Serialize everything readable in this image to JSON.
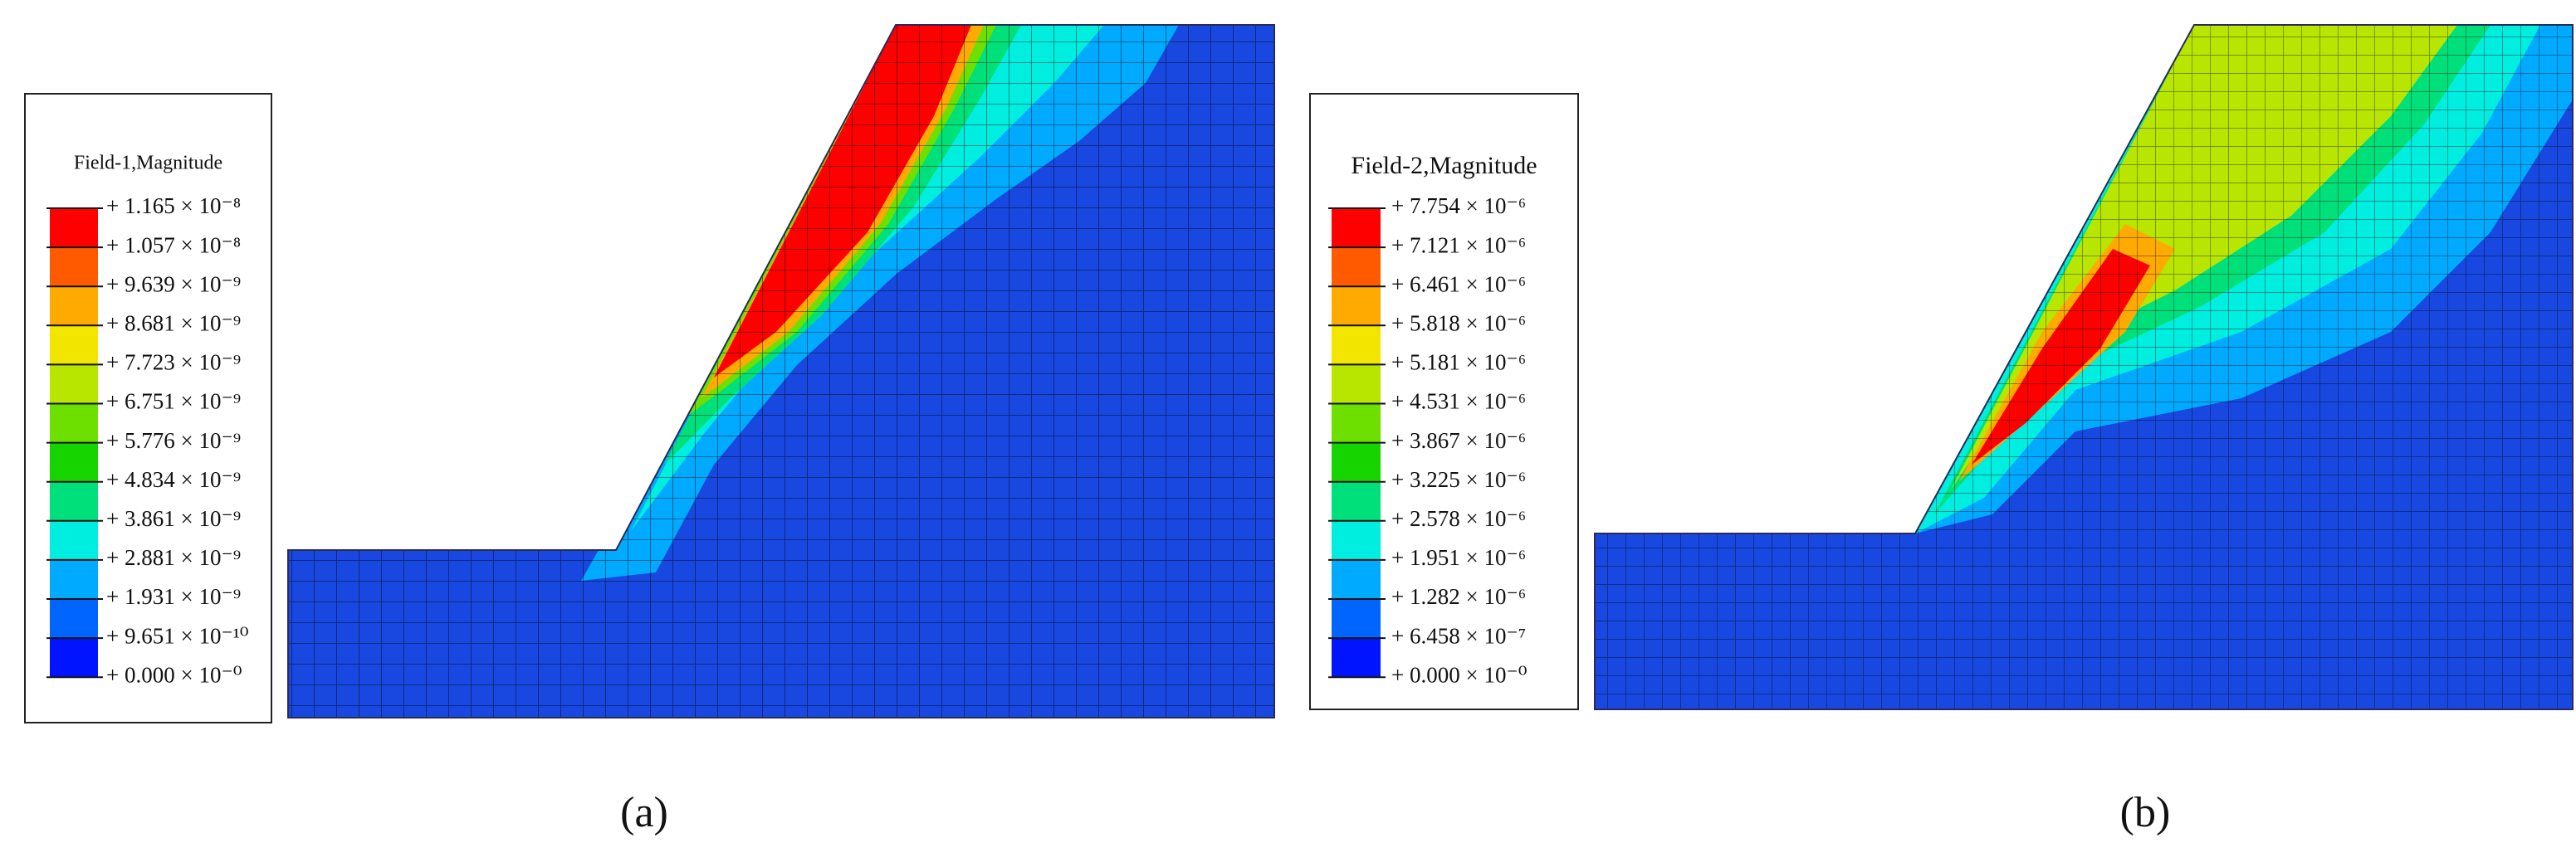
{
  "panels": [
    {
      "legend": {
        "title": "Field-1,Magnitude",
        "labels": [
          "+ 1.165 × 10⁻⁸",
          "+ 1.057 × 10⁻⁸",
          "+ 9.639 × 10⁻⁹",
          "+ 8.681 × 10⁻⁹",
          "+ 7.723 × 10⁻⁹",
          "+ 6.751 × 10⁻⁹",
          "+ 5.776 × 10⁻⁹",
          "+ 4.834 × 10⁻⁹",
          "+ 3.861 × 10⁻⁹",
          "+ 2.881 × 10⁻⁹",
          "+ 1.931 × 10⁻⁹",
          "+ 9.651 × 10⁻¹⁰",
          "+ 0.000 × 10⁻⁰"
        ],
        "colors": [
          "#ff0000",
          "#ff5a00",
          "#ffaa00",
          "#f2e600",
          "#b8e600",
          "#6ee000",
          "#16d400",
          "#00e07a",
          "#00eee0",
          "#00aaff",
          "#0064ff",
          "#0014ff"
        ]
      },
      "caption": "(a)"
    },
    {
      "legend": {
        "title": "Field-2,Magnitude",
        "labels": [
          "+ 7.754 × 10⁻⁶",
          "+ 7.121 × 10⁻⁶",
          "+ 6.461 × 10⁻⁶",
          "+ 5.818 × 10⁻⁶",
          "+ 5.181 × 10⁻⁶",
          "+ 4.531 × 10⁻⁶",
          "+ 3.867 × 10⁻⁶",
          "+ 3.225 × 10⁻⁶",
          "+ 2.578 × 10⁻⁶",
          "+ 1.951 × 10⁻⁶",
          "+ 1.282 × 10⁻⁶",
          "+ 6.458 × 10⁻⁷",
          "+ 0.000 × 10⁻⁰"
        ],
        "colors": [
          "#ff0000",
          "#ff5a00",
          "#ffaa00",
          "#f2e600",
          "#b8e600",
          "#6ee000",
          "#16d400",
          "#00e07a",
          "#00eee0",
          "#00aaff",
          "#0064ff",
          "#0014ff"
        ]
      },
      "caption": "(b)"
    }
  ]
}
